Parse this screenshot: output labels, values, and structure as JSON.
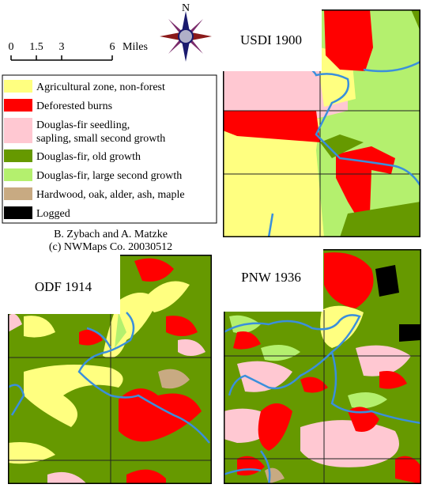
{
  "scale": {
    "ticks": [
      "0",
      "1.5",
      "3",
      "6"
    ],
    "unit": "Miles"
  },
  "compass": "N",
  "legend": [
    {
      "lines": [
        "Agricultural zone, non-forest"
      ],
      "color": "#ffff80"
    },
    {
      "lines": [
        "Deforested burns"
      ],
      "color": "#ff0000"
    },
    {
      "lines": [
        "Douglas-fir seedling,",
        "sapling, small second growth"
      ],
      "color": "#ffc8d2"
    },
    {
      "lines": [
        "Douglas-fir, old growth"
      ],
      "color": "#669900"
    },
    {
      "lines": [
        "Douglas-fir, large second growth"
      ],
      "color": "#b4f06e"
    },
    {
      "lines": [
        "Hardwood, oak, alder, ash, maple"
      ],
      "color": "#c8aa82"
    },
    {
      "lines": [
        "Logged"
      ],
      "color": "#000000"
    }
  ],
  "credits": [
    "B. Zybach and A. Matzke",
    "(c) NWMaps Co. 20030512"
  ],
  "maps": [
    {
      "title": "USDI 1900"
    },
    {
      "title": "ODF 1914"
    },
    {
      "title": "PNW 1936"
    }
  ]
}
